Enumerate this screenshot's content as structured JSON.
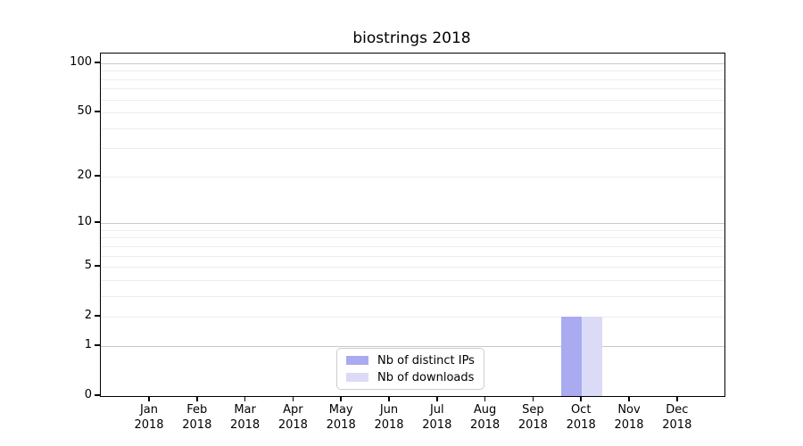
{
  "chart_data": {
    "type": "bar",
    "title": "biostrings 2018",
    "categories": [
      "Jan",
      "Feb",
      "Mar",
      "Apr",
      "May",
      "Jun",
      "Jul",
      "Aug",
      "Sep",
      "Oct",
      "Nov",
      "Dec"
    ],
    "year_label": "2018",
    "series": [
      {
        "name": "Nb of distinct IPs",
        "color": "#aaaaf0",
        "values": [
          0,
          0,
          0,
          0,
          0,
          0,
          0,
          0,
          0,
          2,
          0,
          0
        ]
      },
      {
        "name": "Nb of downloads",
        "color": "#dbdbf7",
        "values": [
          0,
          0,
          0,
          0,
          0,
          0,
          0,
          0,
          0,
          2,
          0,
          0
        ]
      }
    ],
    "yscale": "log1p",
    "ylim": [
      0,
      116
    ],
    "ytick_labels": [
      0,
      1,
      2,
      5,
      10,
      20,
      50,
      100
    ],
    "grid_major_values": [
      1,
      10,
      100
    ],
    "grid_minor_values": [
      2,
      3,
      4,
      5,
      6,
      7,
      8,
      9,
      20,
      30,
      40,
      50,
      60,
      70,
      80,
      90
    ],
    "legend": {
      "position": "lower center",
      "entries": [
        "Nb of distinct IPs",
        "Nb of downloads"
      ]
    },
    "colors": {
      "grid_major": "#c9c9c9",
      "grid_minor": "#ededed",
      "spine": "#000000",
      "text": "#000000",
      "background": "#ffffff"
    }
  }
}
